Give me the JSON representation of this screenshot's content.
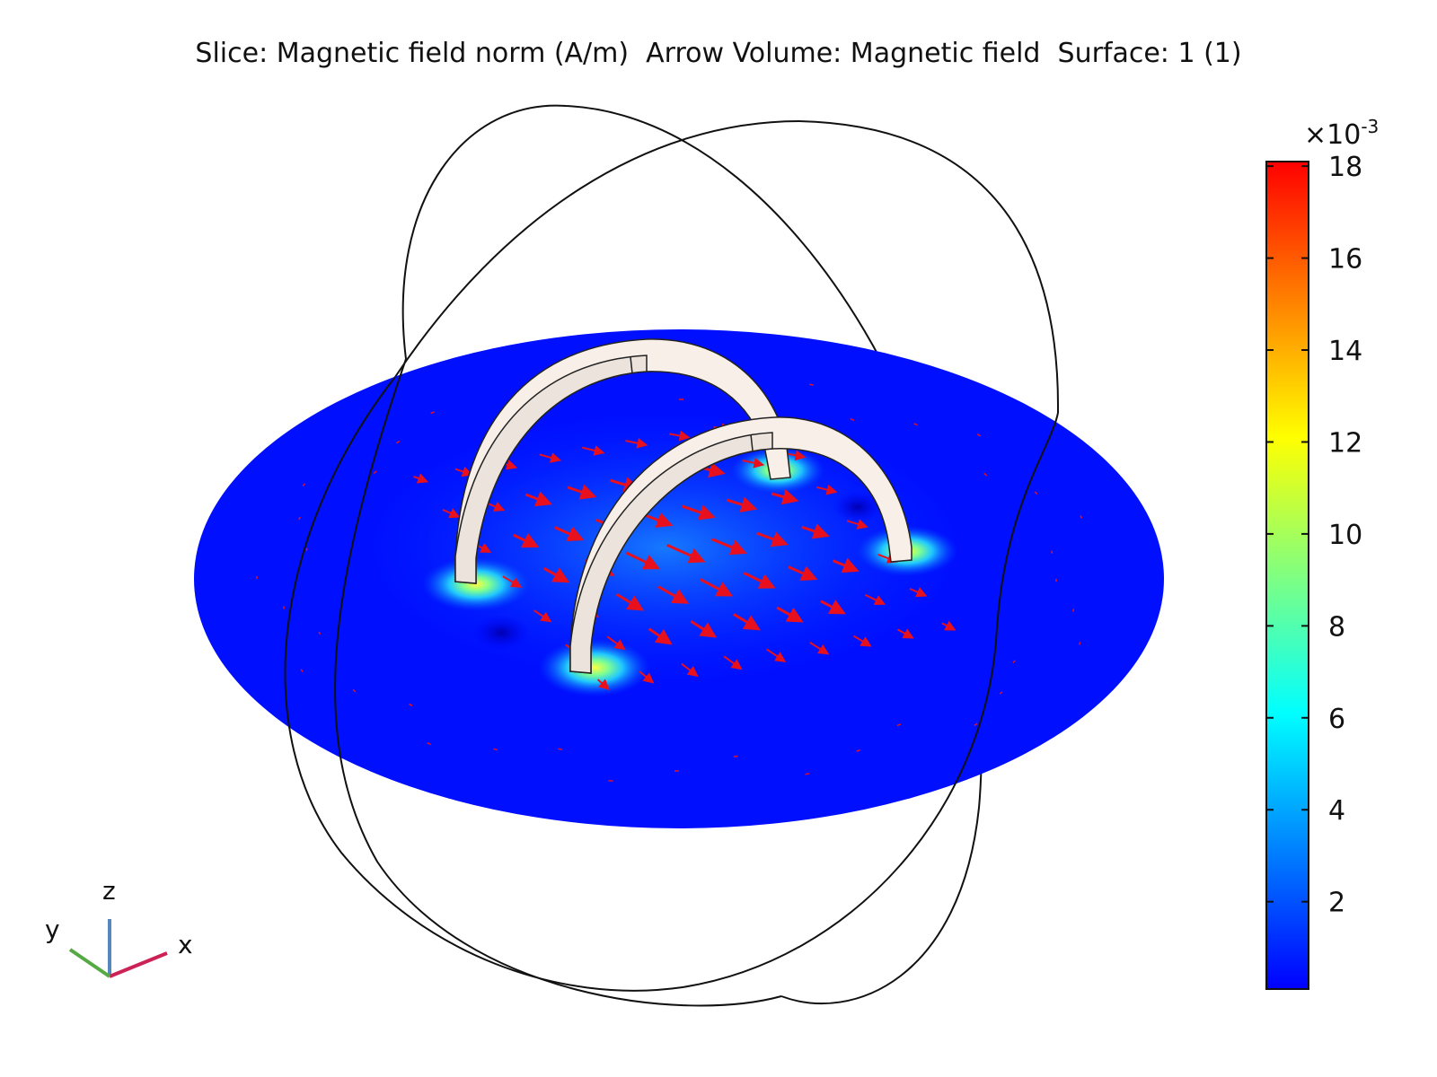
{
  "title": "Slice: Magnetic field norm (A/m)  Arrow Volume: Magnetic field  Surface: 1 (1)",
  "chart_data": {
    "type": "heatmap",
    "plot_kind": "3D slice with arrow volume and surface",
    "slice_quantity": "Magnetic field norm (A/m)",
    "arrow_quantity": "Magnetic field",
    "surface_quantity": "1 (1)",
    "colorbar": {
      "multiplier": "×10",
      "exponent": "-3",
      "ticks": [
        2,
        4,
        6,
        8,
        10,
        12,
        14,
        16,
        18
      ],
      "range": [
        0.1,
        18.1
      ],
      "colormap": "rainbow",
      "colors": [
        "#0000ff",
        "#0080ff",
        "#00ffff",
        "#80ff80",
        "#ffff00",
        "#ff8000",
        "#ff0000"
      ],
      "arrow_color": "#e8101c",
      "coil_color": "#f8efe8"
    },
    "triad": {
      "x": "x",
      "y": "y",
      "z": "z",
      "colors": {
        "x": "#cc2255",
        "y": "#55aa44",
        "z": "#5588bb"
      }
    }
  }
}
